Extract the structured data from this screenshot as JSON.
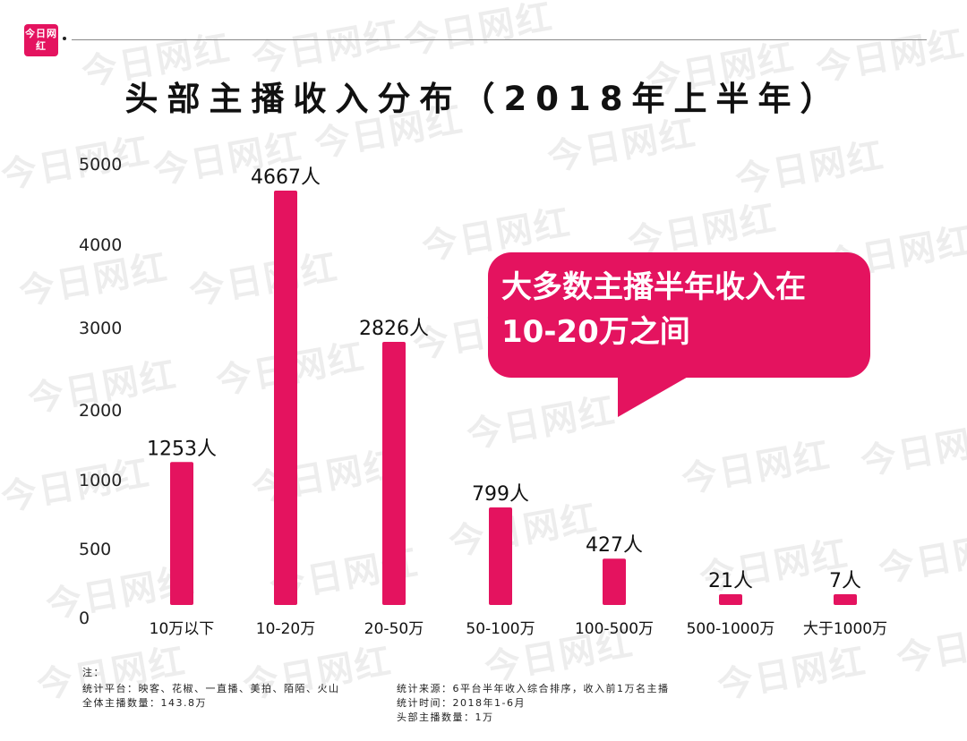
{
  "logo": {
    "text": "今日网红"
  },
  "watermark": "今日网红",
  "chart_data": {
    "type": "bar",
    "title": "头部主播收入分布（2018年上半年）",
    "categories": [
      "10万以下",
      "10-20万",
      "20-50万",
      "50-100万",
      "100-500万",
      "500-1000万",
      "大于1000万"
    ],
    "values": [
      1253,
      4667,
      2826,
      799,
      427,
      21,
      7
    ],
    "data_labels": [
      "1253人",
      "4667人",
      "2826人",
      "799人",
      "427人",
      "21人",
      "7人"
    ],
    "y_ticks": [
      "0",
      "500",
      "1000",
      "2000",
      "3000",
      "4000",
      "5000"
    ],
    "bar_color": "#e4135f",
    "grid": false
  },
  "callout": {
    "text": "大多数主播半年收入在10-20万之间"
  },
  "notes": {
    "header": "注：",
    "left": [
      "统计平台：映客、花椒、一直播、美拍、陌陌、火山",
      "全体主播数量：143.8万"
    ],
    "right": [
      "统计来源：6平台半年收入综合排序，收入前1万名主播",
      "统计时间：2018年1-6月",
      "头部主播数量：1万"
    ]
  }
}
